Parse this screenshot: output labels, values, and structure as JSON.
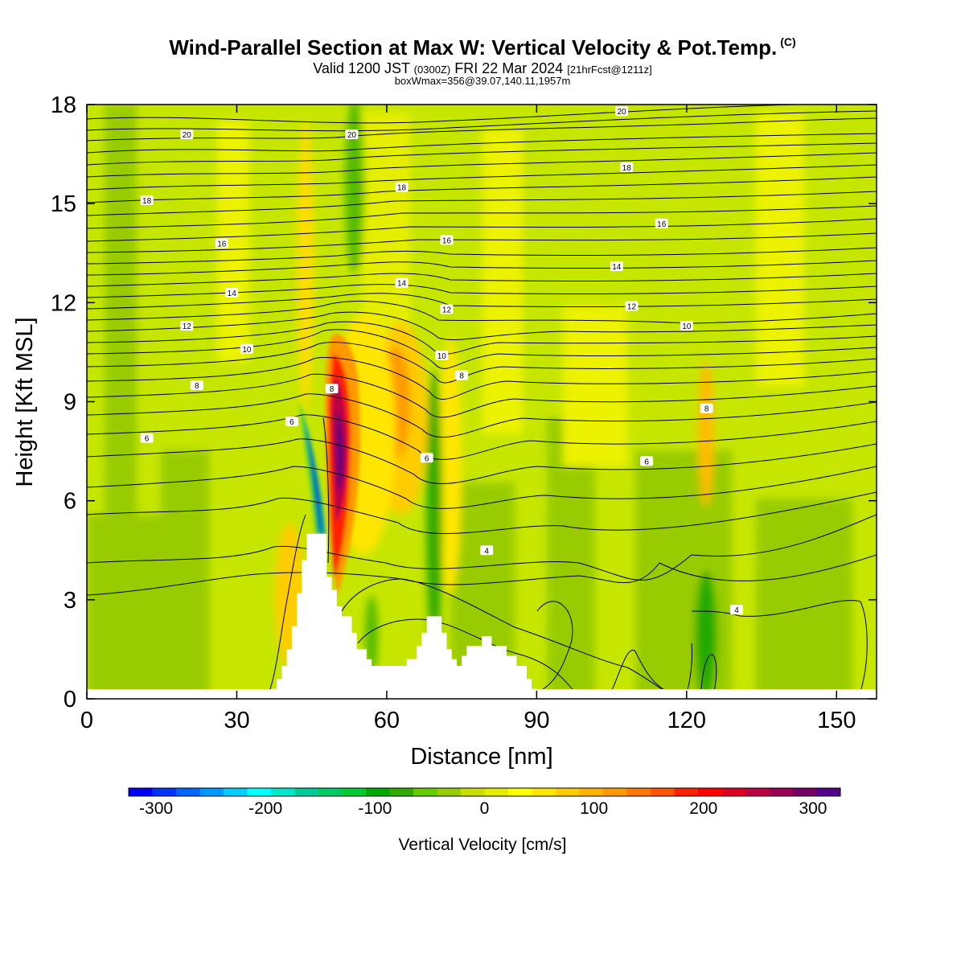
{
  "header": {
    "title": "Wind-Parallel Section at Max W: Vertical Velocity & Pot.Temp.",
    "copyright": "(C)",
    "valid_prefix": "Valid 1200 JST",
    "valid_zulu": "(0300Z)",
    "valid_date": "FRI 22 Mar 2024",
    "forecast_info": "[21hrFcst@1211z]",
    "box_info": "boxWmax=356@39.07,140.11,1957m"
  },
  "chart_data": {
    "type": "heatmap",
    "xlabel": "Distance [nm]",
    "ylabel": "Height [Kft MSL]",
    "xlim": [
      0,
      158
    ],
    "ylim": [
      0,
      18
    ],
    "x_ticks": [
      0,
      30,
      60,
      90,
      120,
      150
    ],
    "y_ticks": [
      0,
      3,
      6,
      9,
      12,
      15,
      18
    ],
    "grid": false,
    "colorbar": {
      "label": "Vertical Velocity [cm/s]",
      "min": -325,
      "max": 325,
      "tick_labels": [
        -300,
        -200,
        -100,
        0,
        100,
        200,
        300
      ],
      "colors": [
        "#0000ff",
        "#0033ff",
        "#0066ff",
        "#0099ff",
        "#00ccff",
        "#00ffff",
        "#00e6cc",
        "#00cc99",
        "#00cc66",
        "#00cc33",
        "#00aa00",
        "#33aa00",
        "#66cc00",
        "#99cc00",
        "#ccdd00",
        "#e6ee00",
        "#ffff00",
        "#ffe600",
        "#ffcc00",
        "#ffb300",
        "#ff9900",
        "#ff7700",
        "#ff5500",
        "#ff2200",
        "#ff0000",
        "#dd0022",
        "#bb0044",
        "#990055",
        "#770066",
        "#550088"
      ]
    },
    "terrain": [
      [
        37,
        0
      ],
      [
        37,
        0.3
      ],
      [
        38,
        0.3
      ],
      [
        38,
        0.6
      ],
      [
        39,
        0.6
      ],
      [
        39,
        1.0
      ],
      [
        40,
        1.0
      ],
      [
        40,
        1.5
      ],
      [
        41,
        1.5
      ],
      [
        41,
        2.2
      ],
      [
        42,
        2.2
      ],
      [
        42,
        3.2
      ],
      [
        43,
        3.2
      ],
      [
        43,
        4.2
      ],
      [
        44,
        4.2
      ],
      [
        44,
        5.0
      ],
      [
        48,
        5.0
      ],
      [
        48,
        3.7
      ],
      [
        49,
        3.7
      ],
      [
        49,
        3.3
      ],
      [
        50,
        3.3
      ],
      [
        50,
        2.8
      ],
      [
        51,
        2.8
      ],
      [
        51,
        2.5
      ],
      [
        53,
        2.5
      ],
      [
        53,
        2.0
      ],
      [
        54,
        2.0
      ],
      [
        54,
        1.5
      ],
      [
        56,
        1.5
      ],
      [
        56,
        1.2
      ],
      [
        57,
        1.2
      ],
      [
        57,
        1.0
      ],
      [
        64,
        1.0
      ],
      [
        64,
        1.2
      ],
      [
        66,
        1.2
      ],
      [
        66,
        1.6
      ],
      [
        67,
        1.6
      ],
      [
        67,
        2.0
      ],
      [
        68,
        2.0
      ],
      [
        68,
        2.5
      ],
      [
        71,
        2.5
      ],
      [
        71,
        2.0
      ],
      [
        72,
        2.0
      ],
      [
        72,
        1.5
      ],
      [
        73,
        1.5
      ],
      [
        73,
        1.2
      ],
      [
        74,
        1.2
      ],
      [
        74,
        1.0
      ],
      [
        75,
        1.0
      ],
      [
        75,
        1.3
      ],
      [
        76,
        1.3
      ],
      [
        76,
        1.6
      ],
      [
        79,
        1.6
      ],
      [
        79,
        1.9
      ],
      [
        81,
        1.9
      ],
      [
        81,
        1.6
      ],
      [
        84,
        1.6
      ],
      [
        84,
        1.3
      ],
      [
        86,
        1.3
      ],
      [
        86,
        1.0
      ],
      [
        88,
        1.0
      ],
      [
        88,
        0.6
      ],
      [
        89,
        0.6
      ],
      [
        89,
        0.3
      ],
      [
        90,
        0.3
      ],
      [
        90,
        0
      ]
    ],
    "contour_labels": [
      {
        "text": "20",
        "x": 20,
        "y": 17.1
      },
      {
        "text": "20",
        "x": 53,
        "y": 17.1
      },
      {
        "text": "20",
        "x": 107,
        "y": 17.8
      },
      {
        "text": "18",
        "x": 12,
        "y": 15.1
      },
      {
        "text": "18",
        "x": 63,
        "y": 15.5
      },
      {
        "text": "18",
        "x": 108,
        "y": 16.1
      },
      {
        "text": "16",
        "x": 27,
        "y": 13.8
      },
      {
        "text": "16",
        "x": 72,
        "y": 13.9
      },
      {
        "text": "16",
        "x": 115,
        "y": 14.4
      },
      {
        "text": "14",
        "x": 29,
        "y": 12.3
      },
      {
        "text": "14",
        "x": 63,
        "y": 12.6
      },
      {
        "text": "14",
        "x": 106,
        "y": 13.1
      },
      {
        "text": "12",
        "x": 20,
        "y": 11.3
      },
      {
        "text": "12",
        "x": 72,
        "y": 11.8
      },
      {
        "text": "12",
        "x": 109,
        "y": 11.9
      },
      {
        "text": "10",
        "x": 32,
        "y": 10.6
      },
      {
        "text": "10",
        "x": 71,
        "y": 10.4
      },
      {
        "text": "10",
        "x": 120,
        "y": 11.3
      },
      {
        "text": "8",
        "x": 22,
        "y": 9.5
      },
      {
        "text": "8",
        "x": 49,
        "y": 9.4
      },
      {
        "text": "8",
        "x": 75,
        "y": 9.8
      },
      {
        "text": "8",
        "x": 124,
        "y": 8.8
      },
      {
        "text": "6",
        "x": 12,
        "y": 7.9
      },
      {
        "text": "6",
        "x": 41,
        "y": 8.4
      },
      {
        "text": "6",
        "x": 68,
        "y": 7.3
      },
      {
        "text": "6",
        "x": 112,
        "y": 7.2
      },
      {
        "text": "4",
        "x": 80,
        "y": 4.5
      },
      {
        "text": "4",
        "x": 130,
        "y": 2.7
      }
    ]
  }
}
